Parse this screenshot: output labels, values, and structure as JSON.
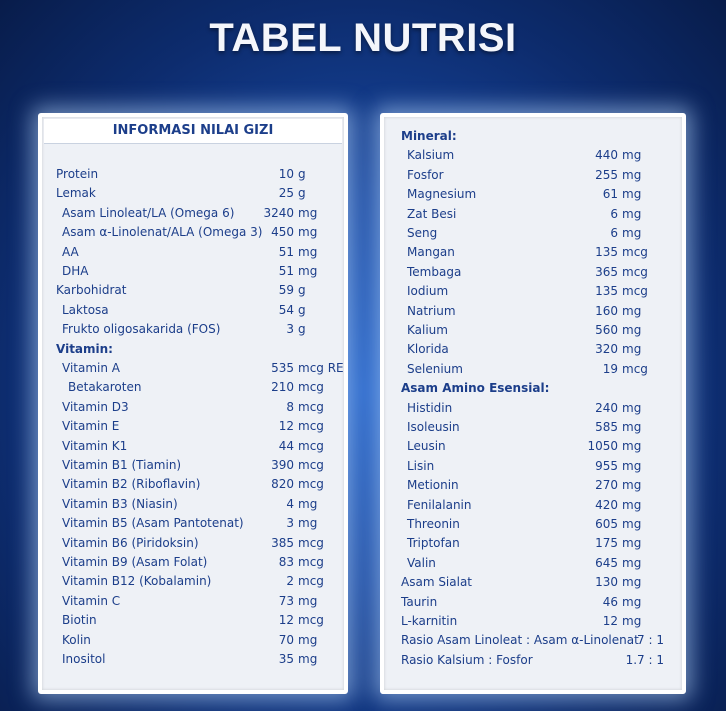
{
  "title": "TABEL NUTRISI",
  "left_header": "INFORMASI NILAI GIZI",
  "left_rows": [
    {
      "label": "Protein",
      "indent": 0,
      "value": "10",
      "unit": "g"
    },
    {
      "label": "Lemak",
      "indent": 0,
      "value": "25",
      "unit": "g"
    },
    {
      "label": "Asam Linoleat/LA (Omega 6)",
      "indent": 1,
      "value": "3240",
      "unit": "mg"
    },
    {
      "label": "Asam α-Linolenat/ALA (Omega 3)",
      "indent": 1,
      "value": "450",
      "unit": "mg"
    },
    {
      "label": "AA",
      "indent": 1,
      "value": "51",
      "unit": "mg"
    },
    {
      "label": "DHA",
      "indent": 1,
      "value": "51",
      "unit": "mg"
    },
    {
      "label": "Karbohidrat",
      "indent": 0,
      "value": "59",
      "unit": "g"
    },
    {
      "label": "Laktosa",
      "indent": 1,
      "value": "54",
      "unit": "g"
    },
    {
      "label": "Frukto oligosakarida (FOS)",
      "indent": 1,
      "value": "3",
      "unit": "g"
    },
    {
      "label": "Vitamin:",
      "indent": 0,
      "value": "",
      "unit": "",
      "bold": true
    },
    {
      "label": "Vitamin A",
      "indent": 1,
      "value": "535",
      "unit": "mcg RE"
    },
    {
      "label": "Betakaroten",
      "indent": 2,
      "value": "210",
      "unit": "mcg"
    },
    {
      "label": "Vitamin D3",
      "indent": 1,
      "value": "8",
      "unit": "mcg"
    },
    {
      "label": "Vitamin E",
      "indent": 1,
      "value": "12",
      "unit": "mcg"
    },
    {
      "label": "Vitamin K1",
      "indent": 1,
      "value": "44",
      "unit": "mcg"
    },
    {
      "label": "Vitamin B1 (Tiamin)",
      "indent": 1,
      "value": "390",
      "unit": "mcg"
    },
    {
      "label": "Vitamin B2 (Riboflavin)",
      "indent": 1,
      "value": "820",
      "unit": "mcg"
    },
    {
      "label": "Vitamin B3 (Niasin)",
      "indent": 1,
      "value": "4",
      "unit": "mg"
    },
    {
      "label": "Vitamin B5 (Asam Pantotenat)",
      "indent": 1,
      "value": "3",
      "unit": "mg"
    },
    {
      "label": "Vitamin B6 (Piridoksin)",
      "indent": 1,
      "value": "385",
      "unit": "mcg"
    },
    {
      "label": "Vitamin B9 (Asam Folat)",
      "indent": 1,
      "value": "83",
      "unit": "mcg"
    },
    {
      "label": "Vitamin B12 (Kobalamin)",
      "indent": 1,
      "value": "2",
      "unit": "mcg"
    },
    {
      "label": "Vitamin C",
      "indent": 1,
      "value": "73",
      "unit": "mg"
    },
    {
      "label": "Biotin",
      "indent": 1,
      "value": "12",
      "unit": "mcg"
    },
    {
      "label": "Kolin",
      "indent": 1,
      "value": "70",
      "unit": "mg"
    },
    {
      "label": "Inositol",
      "indent": 1,
      "value": "35",
      "unit": "mg"
    }
  ],
  "right_rows": [
    {
      "label": "Mineral:",
      "indent": 0,
      "value": "",
      "unit": "",
      "bold": true
    },
    {
      "label": "Kalsium",
      "indent": 1,
      "value": "440",
      "unit": "mg"
    },
    {
      "label": "Fosfor",
      "indent": 1,
      "value": "255",
      "unit": "mg"
    },
    {
      "label": "Magnesium",
      "indent": 1,
      "value": "61",
      "unit": "mg"
    },
    {
      "label": "Zat Besi",
      "indent": 1,
      "value": "6",
      "unit": "mg"
    },
    {
      "label": "Seng",
      "indent": 1,
      "value": "6",
      "unit": "mg"
    },
    {
      "label": "Mangan",
      "indent": 1,
      "value": "135",
      "unit": "mcg"
    },
    {
      "label": "Tembaga",
      "indent": 1,
      "value": "365",
      "unit": "mcg"
    },
    {
      "label": "Iodium",
      "indent": 1,
      "value": "135",
      "unit": "mcg"
    },
    {
      "label": "Natrium",
      "indent": 1,
      "value": "160",
      "unit": "mg"
    },
    {
      "label": "Kalium",
      "indent": 1,
      "value": "560",
      "unit": "mg"
    },
    {
      "label": "Klorida",
      "indent": 1,
      "value": "320",
      "unit": "mg"
    },
    {
      "label": "Selenium",
      "indent": 1,
      "value": "19",
      "unit": "mcg"
    },
    {
      "label": "Asam Amino Esensial:",
      "indent": 0,
      "value": "",
      "unit": "",
      "bold": true
    },
    {
      "label": "Histidin",
      "indent": 1,
      "value": "240",
      "unit": "mg"
    },
    {
      "label": "Isoleusin",
      "indent": 1,
      "value": "585",
      "unit": "mg"
    },
    {
      "label": "Leusin",
      "indent": 1,
      "value": "1050",
      "unit": "mg"
    },
    {
      "label": "Lisin",
      "indent": 1,
      "value": "955",
      "unit": "mg"
    },
    {
      "label": "Metionin",
      "indent": 1,
      "value": "270",
      "unit": "mg"
    },
    {
      "label": "Fenilalanin",
      "indent": 1,
      "value": "420",
      "unit": "mg"
    },
    {
      "label": "Threonin",
      "indent": 1,
      "value": "605",
      "unit": "mg"
    },
    {
      "label": "Triptofan",
      "indent": 1,
      "value": "175",
      "unit": "mg"
    },
    {
      "label": "Valin",
      "indent": 1,
      "value": "645",
      "unit": "mg"
    },
    {
      "label": "Asam Sialat",
      "indent": 0,
      "value": "130",
      "unit": "mg"
    },
    {
      "label": "Taurin",
      "indent": 0,
      "value": "46",
      "unit": "mg"
    },
    {
      "label": "L-karnitin",
      "indent": 0,
      "value": "12",
      "unit": "mg"
    },
    {
      "label": "Rasio Asam Linoleat : Asam α-Linolenat",
      "indent": 0,
      "value": "7 : 1",
      "unit": "",
      "ratio": true
    },
    {
      "label": "Rasio Kalsium : Fosfor",
      "indent": 0,
      "value": "1.7 : 1",
      "unit": "",
      "ratio": true
    }
  ],
  "colors": {
    "text": "#1c3e8a",
    "panel": "#eef1f6",
    "background": "#1747a0"
  }
}
